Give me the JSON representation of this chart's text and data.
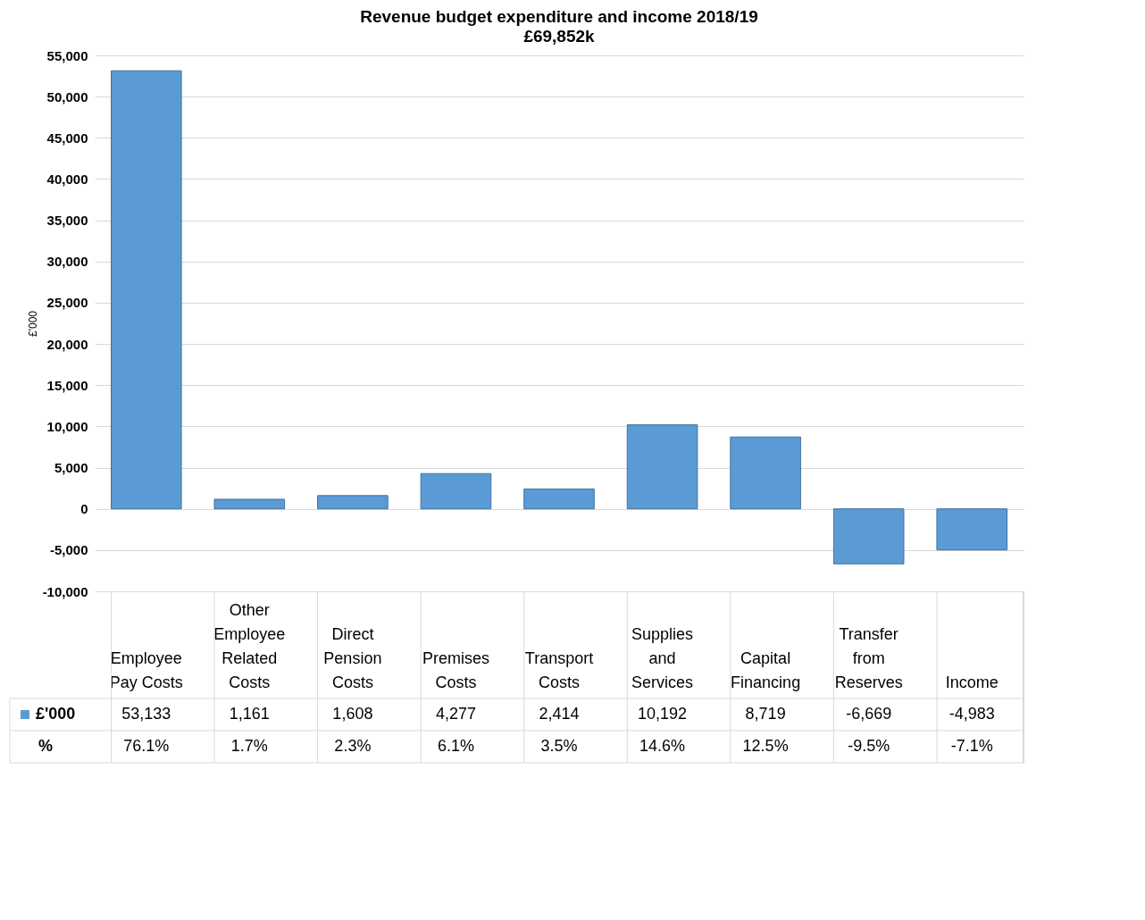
{
  "chart_data": {
    "type": "bar",
    "title": "Revenue budget expenditure and income 2018/19",
    "subtitle": "£69,852k",
    "ylabel": "£'000",
    "categories": [
      "Employee Pay Costs",
      "Other Employee Related Costs",
      "Direct Pension Costs",
      "Premises Costs",
      "Transport Costs",
      "Supplies and Services",
      "Capital Financing",
      "Transfer from Reserves",
      "Income"
    ],
    "series": [
      {
        "name": "£'000",
        "color": "#5b9bd5",
        "values": [
          53133,
          1161,
          1608,
          4277,
          2414,
          10192,
          8719,
          -6669,
          -4983
        ],
        "value_labels": [
          "53,133",
          "1,161",
          "1,608",
          "4,277",
          "2,414",
          "10,192",
          "8,719",
          "-6,669",
          "-4,983"
        ]
      }
    ],
    "ylim": [
      -10000,
      55000
    ],
    "yticks": [
      {
        "value": -10000,
        "label": "-10,000"
      },
      {
        "value": -5000,
        "label": "-5,000"
      },
      {
        "value": 0,
        "label": "0"
      },
      {
        "value": 5000,
        "label": "5,000"
      },
      {
        "value": 10000,
        "label": "10,000"
      },
      {
        "value": 15000,
        "label": "15,000"
      },
      {
        "value": 20000,
        "label": "20,000"
      },
      {
        "value": 25000,
        "label": "25,000"
      },
      {
        "value": 30000,
        "label": "30,000"
      },
      {
        "value": 35000,
        "label": "35,000"
      },
      {
        "value": 40000,
        "label": "40,000"
      },
      {
        "value": 45000,
        "label": "45,000"
      },
      {
        "value": 50000,
        "label": "50,000"
      },
      {
        "value": 55000,
        "label": "55,000"
      }
    ],
    "grid": "y",
    "legend": "bottom",
    "annotations": [
      "%",
      "76.1%",
      "1.7%",
      "2.3%",
      "6.1%",
      "3.5%",
      "14.6%",
      "12.5%",
      "-9.5%",
      "-7.1%"
    ]
  }
}
